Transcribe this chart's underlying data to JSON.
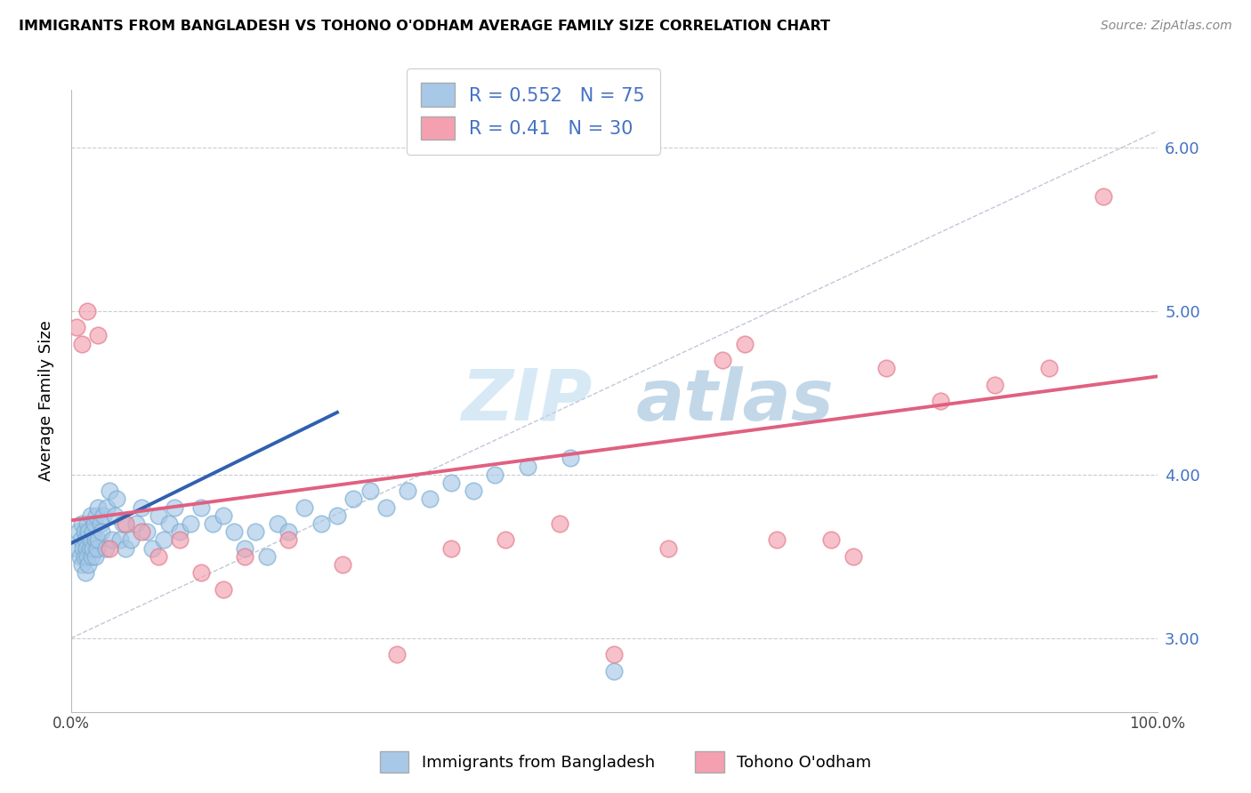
{
  "title": "IMMIGRANTS FROM BANGLADESH VS TOHONO O'ODHAM AVERAGE FAMILY SIZE CORRELATION CHART",
  "source": "Source: ZipAtlas.com",
  "ylabel": "Average Family Size",
  "watermark_part1": "ZIP",
  "watermark_part2": "atlas",
  "xlim": [
    0.0,
    1.0
  ],
  "ylim": [
    2.55,
    6.35
  ],
  "yticks_right": [
    3.0,
    4.0,
    5.0,
    6.0
  ],
  "xticks": [
    0.0,
    0.25,
    0.5,
    0.75,
    1.0
  ],
  "xtick_labels": [
    "0.0%",
    "",
    "",
    "",
    "100.0%"
  ],
  "blue_R": 0.552,
  "blue_N": 75,
  "pink_R": 0.41,
  "pink_N": 30,
  "blue_color": "#a8c8e8",
  "pink_color": "#f4a0b0",
  "blue_edge_color": "#7aaed0",
  "pink_edge_color": "#e07888",
  "blue_line_color": "#3060b0",
  "pink_line_color": "#e06080",
  "ref_line_color": "#c0c8d8",
  "legend_label_blue": "Immigrants from Bangladesh",
  "legend_label_pink": "Tohono O'odham",
  "blue_scatter_x": [
    0.005,
    0.007,
    0.008,
    0.009,
    0.01,
    0.01,
    0.011,
    0.012,
    0.012,
    0.013,
    0.013,
    0.014,
    0.015,
    0.015,
    0.016,
    0.016,
    0.017,
    0.018,
    0.018,
    0.019,
    0.02,
    0.02,
    0.021,
    0.022,
    0.022,
    0.023,
    0.024,
    0.025,
    0.025,
    0.027,
    0.028,
    0.03,
    0.032,
    0.033,
    0.035,
    0.038,
    0.04,
    0.042,
    0.045,
    0.048,
    0.05,
    0.055,
    0.06,
    0.065,
    0.07,
    0.075,
    0.08,
    0.085,
    0.09,
    0.095,
    0.1,
    0.11,
    0.12,
    0.13,
    0.14,
    0.15,
    0.16,
    0.17,
    0.18,
    0.19,
    0.2,
    0.215,
    0.23,
    0.245,
    0.26,
    0.275,
    0.29,
    0.31,
    0.33,
    0.35,
    0.37,
    0.39,
    0.42,
    0.46,
    0.5
  ],
  "blue_scatter_y": [
    3.55,
    3.65,
    3.5,
    3.6,
    3.7,
    3.45,
    3.55,
    3.65,
    3.5,
    3.4,
    3.6,
    3.55,
    3.7,
    3.5,
    3.45,
    3.65,
    3.55,
    3.6,
    3.75,
    3.5,
    3.65,
    3.55,
    3.7,
    3.6,
    3.5,
    3.75,
    3.55,
    3.6,
    3.8,
    3.7,
    3.65,
    3.75,
    3.55,
    3.8,
    3.9,
    3.6,
    3.75,
    3.85,
    3.6,
    3.7,
    3.55,
    3.6,
    3.7,
    3.8,
    3.65,
    3.55,
    3.75,
    3.6,
    3.7,
    3.8,
    3.65,
    3.7,
    3.8,
    3.7,
    3.75,
    3.65,
    3.55,
    3.65,
    3.5,
    3.7,
    3.65,
    3.8,
    3.7,
    3.75,
    3.85,
    3.9,
    3.8,
    3.9,
    3.85,
    3.95,
    3.9,
    4.0,
    4.05,
    4.1,
    2.8
  ],
  "pink_scatter_x": [
    0.005,
    0.01,
    0.015,
    0.025,
    0.035,
    0.05,
    0.065,
    0.08,
    0.1,
    0.12,
    0.14,
    0.16,
    0.2,
    0.25,
    0.3,
    0.35,
    0.4,
    0.45,
    0.5,
    0.55,
    0.6,
    0.62,
    0.65,
    0.7,
    0.72,
    0.75,
    0.8,
    0.85,
    0.9,
    0.95
  ],
  "pink_scatter_y": [
    4.9,
    4.8,
    5.0,
    4.85,
    3.55,
    3.7,
    3.65,
    3.5,
    3.6,
    3.4,
    3.3,
    3.5,
    3.6,
    3.45,
    2.9,
    3.55,
    3.6,
    3.7,
    2.9,
    3.55,
    4.7,
    4.8,
    3.6,
    3.6,
    3.5,
    4.65,
    4.45,
    4.55,
    4.65,
    5.7
  ],
  "blue_line_x": [
    0.0,
    0.245
  ],
  "blue_line_y": [
    3.58,
    4.38
  ],
  "pink_line_x": [
    0.0,
    1.0
  ],
  "pink_line_y": [
    3.72,
    4.6
  ],
  "ref_line_x": [
    0.0,
    1.0
  ],
  "ref_line_y": [
    3.0,
    6.1
  ]
}
